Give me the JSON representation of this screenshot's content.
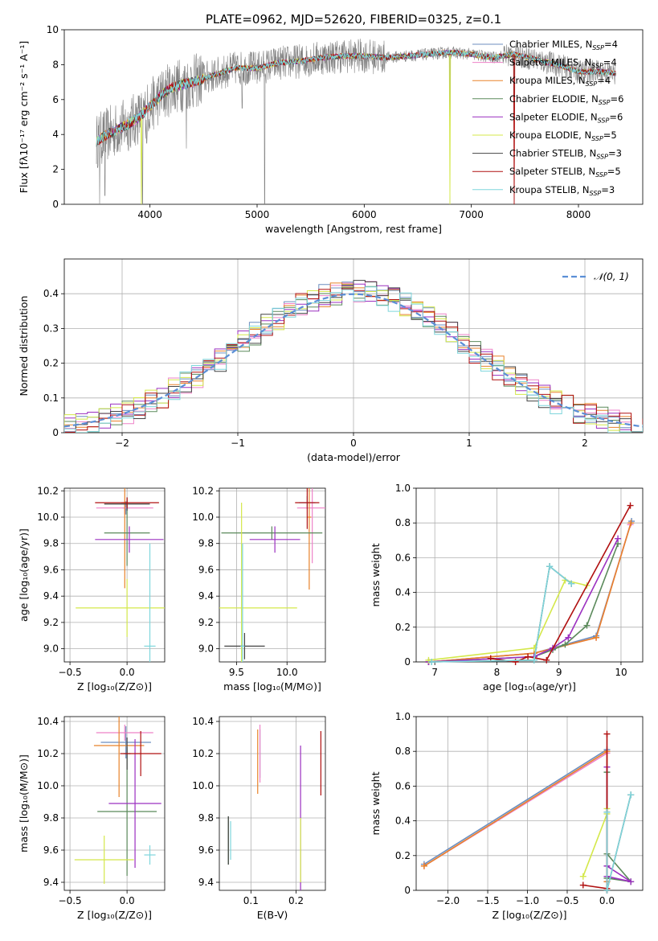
{
  "title": "PLATE=0962, MJD=52620, FIBERID=0325, z=0.1",
  "models": [
    {
      "name": "Chabrier MILES",
      "nssp": "4",
      "color": "#6c8ebf"
    },
    {
      "name": "Salpeter MILES",
      "nssp": "4",
      "color": "#ee82c8"
    },
    {
      "name": "Kroupa MILES",
      "nssp": "4",
      "color": "#e8822a"
    },
    {
      "name": "Chabrier ELODIE",
      "nssp": "6",
      "color": "#5b8a5b"
    },
    {
      "name": "Salpeter ELODIE",
      "nssp": "6",
      "color": "#9b30c0"
    },
    {
      "name": "Kroupa ELODIE",
      "nssp": "5",
      "color": "#d4e84a"
    },
    {
      "name": "Chabrier STELIB",
      "nssp": "3",
      "color": "#444444"
    },
    {
      "name": "Salpeter STELIB",
      "nssp": "5",
      "color": "#b01010"
    },
    {
      "name": "Kroupa STELIB",
      "nssp": "3",
      "color": "#7fd6dc"
    }
  ],
  "chart_data": [
    {
      "id": "spectrum",
      "type": "line",
      "xlabel": "wavelength [Angstrom, rest frame]",
      "ylabel": "Flux [fλ10⁻¹⁷ erg cm⁻² s⁻¹ A⁻¹]",
      "xlim": [
        3200,
        8600
      ],
      "ylim": [
        0,
        10
      ],
      "xticks": [
        4000,
        5000,
        6000,
        7000,
        8000
      ],
      "yticks": [
        0,
        2,
        4,
        6,
        8,
        10
      ],
      "data_color": "#808080",
      "continuum_x": [
        3500,
        3600,
        3700,
        3800,
        3900,
        4000,
        4100,
        4200,
        4400,
        4600,
        4800,
        5000,
        5200,
        5400,
        5600,
        5800,
        6000,
        6200,
        6400,
        6600,
        6800,
        7000,
        7200,
        7400,
        7600,
        7800,
        8000,
        8200,
        8350
      ],
      "continuum_y": [
        3.6,
        4.0,
        4.3,
        4.6,
        5.0,
        5.6,
        6.2,
        6.7,
        7.0,
        7.4,
        7.8,
        7.8,
        8.1,
        8.2,
        8.4,
        8.5,
        8.5,
        8.4,
        8.5,
        8.6,
        8.7,
        8.6,
        8.4,
        8.6,
        8.3,
        8.0,
        7.6,
        7.6,
        7.5
      ],
      "dips": [
        [
          3530,
          0.0
        ],
        [
          3580,
          0.5
        ],
        [
          3930,
          0.0
        ],
        [
          4340,
          3.2
        ],
        [
          5070,
          0.0
        ],
        [
          6800,
          0.0
        ],
        [
          7400,
          0.0
        ],
        [
          3970,
          3.5
        ],
        [
          4860,
          5.5
        ]
      ]
    },
    {
      "id": "residuals",
      "type": "histogram",
      "xlabel": "(data-model)/error",
      "ylabel": "Normed distribution",
      "xlim": [
        -2.5,
        2.5
      ],
      "ylim": [
        0,
        0.5
      ],
      "xticks": [
        -2,
        -1,
        0,
        1,
        2
      ],
      "yticks": [
        0.0,
        0.1,
        0.2,
        0.3,
        0.4
      ],
      "legend": "𝒩(0, 1)",
      "legend_color": "#5b8fd6",
      "bin_width": 0.1
    },
    {
      "id": "age_vs_Z",
      "type": "scatter",
      "xlabel": "Z [log₁₀(Z/Z⊙)]",
      "ylabel": "age  [log₁₀(age/yr)]",
      "xlim": [
        -0.55,
        0.33
      ],
      "ylim": [
        8.9,
        10.22
      ],
      "xticks": [
        -0.5,
        0.0
      ],
      "yticks": [
        9.0,
        9.2,
        9.4,
        9.6,
        9.8,
        10.0,
        10.2
      ],
      "points": [
        {
          "m": 0,
          "x": -0.01,
          "y": 10.07,
          "xe": 0.03,
          "ye": 0.05
        },
        {
          "m": 1,
          "x": -0.02,
          "y": 10.07,
          "xe": 0.25,
          "ye": 0.05
        },
        {
          "m": 2,
          "x": -0.02,
          "y": 10.11,
          "xe": 0.03,
          "ye": 0.65
        },
        {
          "m": 3,
          "x": 0.0,
          "y": 9.88,
          "xe": 0.2,
          "ye": 0.25
        },
        {
          "m": 4,
          "x": 0.02,
          "y": 9.83,
          "xe": 0.3,
          "ye": 0.1
        },
        {
          "m": 5,
          "x": 0.0,
          "y": 9.31,
          "xe": 0.45,
          "ye": 0.22
        },
        {
          "m": 6,
          "x": 0.0,
          "y": 10.1,
          "xe": 0.2,
          "ye": 0.05
        },
        {
          "m": 7,
          "x": 0.0,
          "y": 10.11,
          "xe": 0.28,
          "ye": 0.04
        },
        {
          "m": 8,
          "x": 0.2,
          "y": 9.02,
          "xe": 0.05,
          "ye": 0.78
        }
      ]
    },
    {
      "id": "age_vs_mass",
      "type": "scatter",
      "xlabel": "mass [log₁₀(M/M⊙)]",
      "ylabel": "",
      "xlim": [
        9.33,
        10.38
      ],
      "ylim": [
        8.9,
        10.22
      ],
      "xticks": [
        9.5,
        10.0
      ],
      "yticks": [
        9.0,
        9.2,
        9.4,
        9.6,
        9.8,
        10.0,
        10.2
      ],
      "points": [
        {
          "m": 0,
          "x": 10.2,
          "y": 10.11,
          "xe": 0.08,
          "ye": 0.05
        },
        {
          "m": 1,
          "x": 10.25,
          "y": 10.07,
          "xe": 0.15,
          "ye": 0.42
        },
        {
          "m": 2,
          "x": 10.22,
          "y": 10.0,
          "xe": 0.02,
          "ye": 0.55
        },
        {
          "m": 3,
          "x": 9.85,
          "y": 9.88,
          "xe": 0.5,
          "ye": 0.05
        },
        {
          "m": 4,
          "x": 9.88,
          "y": 9.83,
          "xe": 0.25,
          "ye": 0.1
        },
        {
          "m": 5,
          "x": 9.55,
          "y": 9.31,
          "xe": 0.55,
          "ye": 0.8
        },
        {
          "m": 6,
          "x": 9.58,
          "y": 9.02,
          "xe": 0.2,
          "ye": 0.1
        },
        {
          "m": 7,
          "x": 10.2,
          "y": 10.11,
          "xe": 0.12,
          "ye": 0.2
        },
        {
          "m": 8,
          "x": 9.56,
          "y": 9.02,
          "xe": 0.02,
          "ye": 0.78
        }
      ]
    },
    {
      "id": "weight_vs_age",
      "type": "line",
      "xlabel": "age  [log₁₀(age/yr)]",
      "ylabel": "mass weight",
      "xlim": [
        6.7,
        10.35
      ],
      "ylim": [
        0,
        1
      ],
      "xticks": [
        7,
        8,
        9,
        10
      ],
      "yticks": [
        0.0,
        0.2,
        0.4,
        0.6,
        0.8,
        1.0
      ],
      "series": [
        {
          "m": 0,
          "x": [
            6.9,
            8.6,
            9.6,
            10.17
          ],
          "y": [
            0.0,
            0.05,
            0.15,
            0.81
          ]
        },
        {
          "m": 1,
          "x": [
            6.9,
            8.6,
            9.6,
            10.15
          ],
          "y": [
            0.0,
            0.05,
            0.14,
            0.79
          ]
        },
        {
          "m": 2,
          "x": [
            6.9,
            8.6,
            9.6,
            10.16
          ],
          "y": [
            0.0,
            0.05,
            0.14,
            0.8
          ]
        },
        {
          "m": 3,
          "x": [
            6.9,
            8.6,
            8.9,
            9.1,
            9.45,
            9.95
          ],
          "y": [
            0.0,
            0.03,
            0.07,
            0.1,
            0.21,
            0.68
          ]
        },
        {
          "m": 4,
          "x": [
            6.9,
            8.6,
            8.9,
            9.15,
            9.95
          ],
          "y": [
            0.0,
            0.03,
            0.08,
            0.14,
            0.71
          ]
        },
        {
          "m": 5,
          "x": [
            6.9,
            8.6,
            9.1,
            9.45
          ],
          "y": [
            0.01,
            0.08,
            0.47,
            0.44
          ]
        },
        {
          "m": 6,
          "x": [
            6.95,
            8.6,
            8.85,
            9.2
          ],
          "y": [
            0.0,
            0.01,
            0.55,
            0.45
          ]
        },
        {
          "m": 7,
          "x": [
            7.9,
            8.3,
            8.5,
            8.8,
            10.15
          ],
          "y": [
            0.02,
            0.0,
            0.03,
            0.01,
            0.9
          ]
        },
        {
          "m": 8,
          "x": [
            6.95,
            8.6,
            8.85,
            9.2
          ],
          "y": [
            0.0,
            0.01,
            0.55,
            0.45
          ]
        }
      ]
    },
    {
      "id": "mass_vs_Z",
      "type": "scatter",
      "xlabel": "Z [log₁₀(Z/Z⊙)]",
      "ylabel": "mass [log₁₀(M/M⊙)]",
      "xlim": [
        -0.55,
        0.33
      ],
      "ylim": [
        9.35,
        10.43
      ],
      "xticks": [
        -0.5,
        0.0
      ],
      "yticks": [
        9.4,
        9.6,
        9.8,
        10.0,
        10.2,
        10.4
      ],
      "points": [
        {
          "m": 0,
          "x": -0.01,
          "y": 10.27,
          "xe": 0.22,
          "ye": 0.1
        },
        {
          "m": 1,
          "x": -0.02,
          "y": 10.33,
          "xe": 0.25,
          "ye": 0.05
        },
        {
          "m": 2,
          "x": -0.07,
          "y": 10.25,
          "xe": 0.22,
          "ye": 0.32
        },
        {
          "m": 3,
          "x": 0.0,
          "y": 9.84,
          "xe": 0.26,
          "ye": 0.4
        },
        {
          "m": 4,
          "x": 0.07,
          "y": 9.89,
          "xe": 0.23,
          "ye": 0.4
        },
        {
          "m": 5,
          "x": -0.2,
          "y": 9.54,
          "xe": 0.26,
          "ye": 0.15
        },
        {
          "m": 6,
          "x": 0.0,
          "y": 10.2,
          "xe": 0.03,
          "ye": 0.1
        },
        {
          "m": 7,
          "x": 0.12,
          "y": 10.2,
          "xe": 0.18,
          "ye": 0.14
        },
        {
          "m": 8,
          "x": 0.2,
          "y": 9.57,
          "xe": 0.05,
          "ye": 0.06
        }
      ]
    },
    {
      "id": "mass_vs_ebv",
      "type": "scatter",
      "xlabel": "E(B-V)",
      "ylabel": "",
      "xlim": [
        0.03,
        0.265
      ],
      "ylim": [
        9.35,
        10.43
      ],
      "xticks": [
        0.1,
        0.2
      ],
      "yticks": [
        9.4,
        9.6,
        9.8,
        10.0,
        10.2,
        10.4
      ],
      "points": [
        {
          "m": 0,
          "x": 0.12,
          "y": 10.2,
          "xe": 0.0,
          "ye": 0.15
        },
        {
          "m": 1,
          "x": 0.12,
          "y": 10.2,
          "xe": 0.0,
          "ye": 0.18
        },
        {
          "m": 2,
          "x": 0.115,
          "y": 10.15,
          "xe": 0.0,
          "ye": 0.2
        },
        {
          "m": 3,
          "x": 0.05,
          "y": 9.66,
          "xe": 0.0,
          "ye": 0.15
        },
        {
          "m": 4,
          "x": 0.21,
          "y": 9.8,
          "xe": 0.0,
          "ye": 0.45
        },
        {
          "m": 5,
          "x": 0.21,
          "y": 9.6,
          "xe": 0.0,
          "ye": 0.2
        },
        {
          "m": 6,
          "x": 0.05,
          "y": 9.66,
          "xe": 0.0,
          "ye": 0.15
        },
        {
          "m": 7,
          "x": 0.255,
          "y": 10.14,
          "xe": 0.0,
          "ye": 0.2
        },
        {
          "m": 8,
          "x": 0.055,
          "y": 9.66,
          "xe": 0.0,
          "ye": 0.12
        }
      ]
    },
    {
      "id": "weight_vs_Z",
      "type": "line",
      "xlabel": "Z [log₁₀(Z/Z⊙)]",
      "ylabel": "mass weight",
      "xlim": [
        -2.4,
        0.45
      ],
      "ylim": [
        0,
        1
      ],
      "xticks": [
        -2.0,
        -1.5,
        -1.0,
        -0.5,
        0.0
      ],
      "yticks": [
        0.0,
        0.2,
        0.4,
        0.6,
        0.8,
        1.0
      ],
      "series": [
        {
          "m": 0,
          "x": [
            -2.3,
            0.0,
            0.0
          ],
          "y": [
            0.15,
            0.81,
            0.05
          ]
        },
        {
          "m": 1,
          "x": [
            -2.3,
            0.0,
            0.0
          ],
          "y": [
            0.14,
            0.79,
            0.05
          ]
        },
        {
          "m": 2,
          "x": [
            -2.3,
            0.0,
            0.0
          ],
          "y": [
            0.14,
            0.8,
            0.05
          ]
        },
        {
          "m": 3,
          "x": [
            0.0,
            0.0,
            0.3,
            0.0
          ],
          "y": [
            0.68,
            0.21,
            0.05,
            0.07
          ]
        },
        {
          "m": 4,
          "x": [
            0.0,
            0.0,
            0.3,
            0.0
          ],
          "y": [
            0.71,
            0.14,
            0.05,
            0.08
          ]
        },
        {
          "m": 5,
          "x": [
            -0.3,
            0.0,
            0.0
          ],
          "y": [
            0.08,
            0.44,
            0.47
          ]
        },
        {
          "m": 6,
          "x": [
            0.0,
            0.0,
            0.3
          ],
          "y": [
            0.45,
            0.0,
            0.55
          ]
        },
        {
          "m": 7,
          "x": [
            -0.3,
            0.0,
            0.0,
            0.0
          ],
          "y": [
            0.03,
            0.01,
            0.9,
            0.0
          ]
        },
        {
          "m": 8,
          "x": [
            0.0,
            0.0,
            0.3
          ],
          "y": [
            0.45,
            0.0,
            0.55
          ]
        }
      ]
    }
  ]
}
